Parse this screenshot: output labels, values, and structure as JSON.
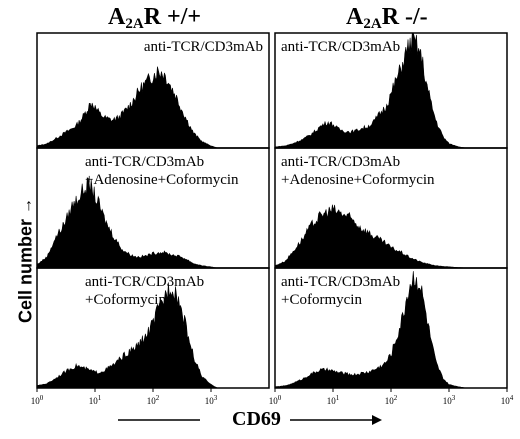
{
  "columns": [
    {
      "title_main": "A",
      "title_sub": "2A",
      "title_rest": "R +/+"
    },
    {
      "title_main": "A",
      "title_sub": "2A",
      "title_rest": "R -/-"
    }
  ],
  "y_axis_label": "Cell number",
  "x_axis_label": "CD69",
  "chart_data": {
    "type": "area",
    "layout": "3 rows x 2 columns of flow cytometry histograms",
    "xscale": "log",
    "xlim": [
      1,
      10000
    ],
    "x_ticks": [
      "10^0",
      "10^1",
      "10^2",
      "10^3",
      "10^4"
    ],
    "x_ticks_shown": [
      [
        "10^0",
        "10^1",
        "10^2",
        "10^3"
      ],
      [
        "10^0",
        "10^1",
        "10^2",
        "10^3",
        "10^4"
      ]
    ],
    "ylabel": "Cell number",
    "xlabel": "CD69",
    "fill_color": "#000000",
    "panels": [
      {
        "row": 0,
        "col": 0,
        "label": [
          "anti-TCR/CD3mAb"
        ],
        "x": [
          1,
          1.5,
          2,
          3,
          4,
          5,
          6,
          7,
          8,
          9,
          10,
          12,
          15,
          20,
          25,
          30,
          40,
          50,
          60,
          80,
          100,
          120,
          150,
          180,
          200,
          250,
          300,
          400,
          500,
          700,
          1000,
          1300
        ],
        "y": [
          2,
          4,
          8,
          14,
          18,
          22,
          28,
          34,
          40,
          42,
          38,
          32,
          28,
          26,
          28,
          32,
          40,
          48,
          55,
          62,
          68,
          72,
          70,
          64,
          58,
          48,
          38,
          24,
          14,
          6,
          2,
          0
        ]
      },
      {
        "row": 0,
        "col": 1,
        "label": [
          "anti-TCR/CD3mAb"
        ],
        "x": [
          1,
          1.5,
          2,
          3,
          4,
          5,
          6,
          8,
          10,
          12,
          15,
          20,
          25,
          30,
          40,
          50,
          60,
          80,
          100,
          120,
          150,
          180,
          200,
          250,
          300,
          350,
          400,
          500,
          600,
          800,
          1000,
          1500,
          2000
        ],
        "y": [
          1,
          2,
          4,
          8,
          12,
          16,
          20,
          24,
          22,
          18,
          16,
          15,
          16,
          18,
          20,
          24,
          30,
          38,
          50,
          62,
          75,
          88,
          95,
          100,
          92,
          80,
          62,
          40,
          25,
          10,
          4,
          1,
          0
        ]
      },
      {
        "row": 1,
        "col": 0,
        "label": [
          "anti-TCR/CD3mAb",
          "+Adenosine+Coformycin"
        ],
        "x": [
          1,
          1.5,
          2,
          3,
          4,
          5,
          6,
          7,
          8,
          9,
          10,
          12,
          15,
          20,
          25,
          30,
          40,
          50,
          60,
          80,
          100,
          150,
          200,
          300,
          400,
          500,
          700,
          1000,
          1300
        ],
        "y": [
          3,
          10,
          25,
          40,
          55,
          62,
          68,
          72,
          74,
          70,
          64,
          55,
          42,
          30,
          22,
          16,
          12,
          10,
          10,
          11,
          13,
          14,
          12,
          10,
          7,
          4,
          2,
          1,
          0
        ]
      },
      {
        "row": 1,
        "col": 1,
        "label": [
          "anti-TCR/CD3mAb",
          "+Adenosine+Coformycin"
        ],
        "x": [
          1,
          1.5,
          2,
          3,
          4,
          5,
          6,
          8,
          10,
          12,
          15,
          20,
          25,
          30,
          40,
          50,
          60,
          80,
          100,
          150,
          200,
          300,
          400,
          600,
          1000,
          2000
        ],
        "y": [
          2,
          6,
          14,
          26,
          36,
          42,
          46,
          50,
          52,
          50,
          48,
          44,
          40,
          36,
          32,
          28,
          26,
          22,
          18,
          14,
          10,
          6,
          4,
          2,
          1,
          0
        ]
      },
      {
        "row": 2,
        "col": 0,
        "label": [
          "anti-TCR/CD3mAb",
          "+Coformycin"
        ],
        "x": [
          1,
          1.5,
          2,
          3,
          4,
          5,
          6,
          8,
          10,
          12,
          15,
          20,
          25,
          30,
          40,
          50,
          60,
          80,
          100,
          120,
          150,
          180,
          200,
          250,
          300,
          400,
          500,
          700,
          1000,
          1300
        ],
        "y": [
          2,
          4,
          8,
          14,
          18,
          20,
          18,
          16,
          14,
          14,
          16,
          20,
          24,
          28,
          32,
          36,
          40,
          48,
          58,
          68,
          78,
          88,
          92,
          86,
          72,
          48,
          28,
          10,
          3,
          0
        ]
      },
      {
        "row": 2,
        "col": 1,
        "label": [
          "anti-TCR/CD3mAb",
          "+Coformycin"
        ],
        "x": [
          1,
          1.5,
          2,
          3,
          4,
          5,
          6,
          8,
          10,
          12,
          15,
          20,
          25,
          30,
          40,
          50,
          60,
          80,
          100,
          120,
          150,
          180,
          200,
          250,
          300,
          350,
          400,
          500,
          600,
          800,
          1000,
          1500,
          2000
        ],
        "y": [
          1,
          2,
          4,
          8,
          12,
          14,
          16,
          16,
          15,
          14,
          13,
          12,
          12,
          13,
          14,
          16,
          18,
          22,
          30,
          42,
          58,
          76,
          88,
          100,
          95,
          82,
          66,
          40,
          22,
          8,
          3,
          1,
          0
        ]
      }
    ]
  }
}
